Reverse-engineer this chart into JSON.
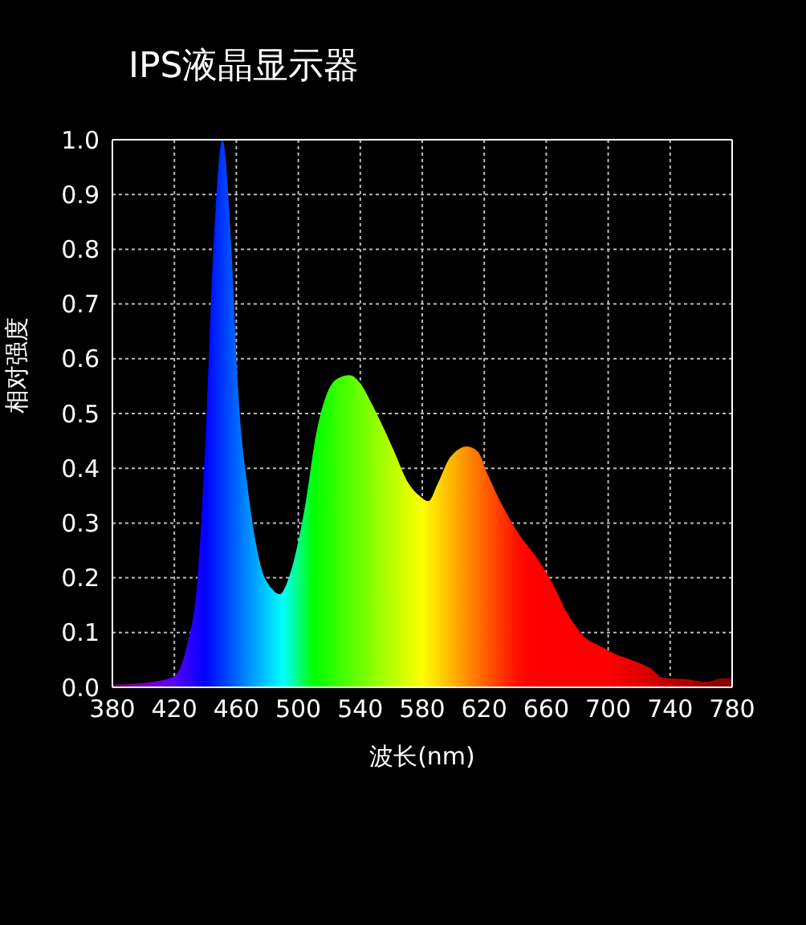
{
  "chart_data": {
    "type": "area",
    "title": "IPS液晶显示器",
    "xlabel": "波长(nm)",
    "ylabel": "相对强度",
    "x": [
      380,
      406,
      420,
      428,
      435,
      440,
      445,
      451,
      457,
      461,
      468,
      475,
      483,
      488,
      495,
      504,
      512,
      519,
      526,
      533,
      540,
      547,
      554,
      562,
      571,
      578,
      584,
      590,
      598,
      609,
      616,
      622,
      633,
      643,
      653,
      664,
      674,
      684,
      695,
      705,
      715,
      726,
      736,
      750,
      763,
      774,
      780
    ],
    "series": [
      {
        "values": [
          0.005,
          0.01,
          0.02,
          0.075,
          0.2,
          0.45,
          0.79,
          1.0,
          0.79,
          0.55,
          0.35,
          0.23,
          0.18,
          0.17,
          0.21,
          0.325,
          0.47,
          0.54,
          0.565,
          0.57,
          0.555,
          0.52,
          0.48,
          0.43,
          0.373,
          0.35,
          0.34,
          0.372,
          0.42,
          0.44,
          0.43,
          0.39,
          0.325,
          0.277,
          0.24,
          0.19,
          0.133,
          0.094,
          0.075,
          0.06,
          0.05,
          0.037,
          0.017,
          0.015,
          0.01,
          0.017,
          0.017
        ]
      }
    ],
    "xlim": [
      380,
      780
    ],
    "xticks": [
      380,
      420,
      460,
      500,
      540,
      580,
      620,
      660,
      700,
      740,
      780
    ],
    "ylim": [
      0,
      1
    ],
    "yticks": [
      {
        "value": 0,
        "label": "0.0"
      },
      {
        "value": 0.1,
        "label": "0.1"
      },
      {
        "value": 0.2,
        "label": "0.2"
      },
      {
        "value": 0.3,
        "label": "0.3"
      },
      {
        "value": 0.4,
        "label": "0.4"
      },
      {
        "value": 0.5,
        "label": "0.5"
      },
      {
        "value": 0.6,
        "label": "0.6"
      },
      {
        "value": 0.7,
        "label": "0.7"
      },
      {
        "value": 0.8,
        "label": "0.8"
      },
      {
        "value": 0.9,
        "label": "0.9"
      },
      {
        "value": 1,
        "label": "1.0"
      }
    ],
    "grid": true,
    "legend": false
  }
}
